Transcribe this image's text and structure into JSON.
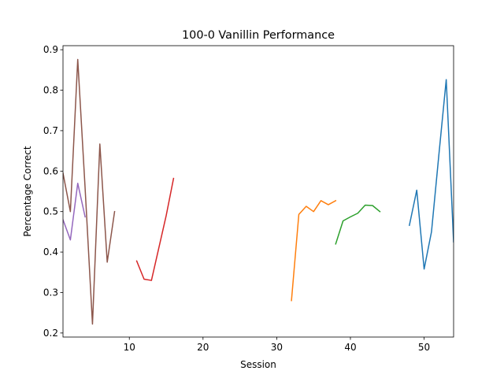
{
  "chart_data": {
    "type": "line",
    "title": "100-0 Vanillin Performance",
    "xlabel": "Session",
    "ylabel": "Percentage Correct",
    "xlim": [
      1,
      54
    ],
    "ylim": [
      0.19,
      0.91
    ],
    "xticks": [
      10,
      20,
      30,
      40,
      50
    ],
    "yticks": [
      0.2,
      0.3,
      0.4,
      0.5,
      0.6,
      0.7,
      0.8,
      0.9
    ],
    "grid": false,
    "series": [
      {
        "color": "#1f77b4",
        "x": [
          48,
          49,
          50,
          51,
          52,
          53,
          54
        ],
        "y": [
          0.466,
          0.553,
          0.358,
          0.45,
          0.64,
          0.826,
          0.425
        ]
      },
      {
        "color": "#ff7f0e",
        "x": [
          32,
          33,
          34,
          35,
          36,
          37,
          38
        ],
        "y": [
          0.28,
          0.493,
          0.513,
          0.5,
          0.527,
          0.517,
          0.527
        ]
      },
      {
        "color": "#2ca02c",
        "x": [
          38,
          39,
          40,
          41,
          42,
          43,
          44
        ],
        "y": [
          0.42,
          0.477,
          0.487,
          0.496,
          0.516,
          0.515,
          0.5
        ]
      },
      {
        "color": "#d62728",
        "x": [
          11,
          12,
          13,
          14,
          15,
          16
        ],
        "y": [
          0.378,
          0.333,
          0.33,
          0.41,
          0.49,
          0.582
        ]
      },
      {
        "color": "#9467bd",
        "x": [
          1,
          2,
          3,
          4
        ],
        "y": [
          0.48,
          0.43,
          0.57,
          0.487
        ]
      },
      {
        "color": "#8c564b",
        "x": [
          1,
          2,
          3,
          4,
          5,
          6,
          7,
          8
        ],
        "y": [
          0.595,
          0.5,
          0.876,
          0.558,
          0.222,
          0.667,
          0.375,
          0.5
        ]
      }
    ]
  }
}
